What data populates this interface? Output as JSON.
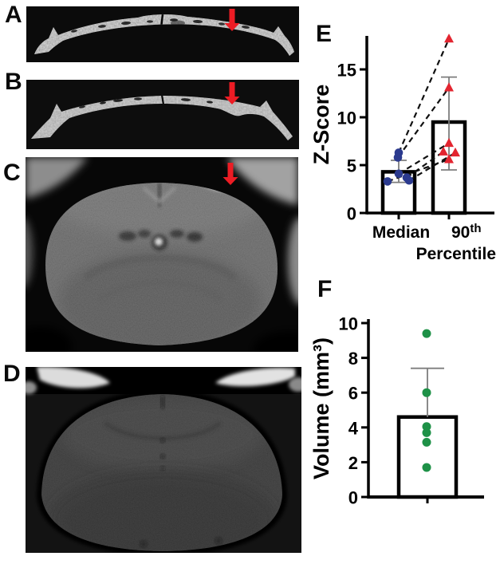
{
  "figure": {
    "background": "#ffffff",
    "arrow_color": "#ec1c24",
    "panels": [
      {
        "id": "A",
        "label": "A",
        "type": "image",
        "content": "skull-ct-cross-section-rough",
        "has_red_arrow": true
      },
      {
        "id": "B",
        "label": "B",
        "type": "image",
        "content": "skull-ct-cross-section-smooth",
        "has_red_arrow": true
      },
      {
        "id": "C",
        "label": "C",
        "type": "image",
        "content": "brain-mri-coronal-with-hyperintense-lesion",
        "has_red_arrow": true
      },
      {
        "id": "D",
        "label": "D",
        "type": "image",
        "content": "brain-mri-coronal-dark",
        "has_red_arrow": false
      },
      {
        "id": "E",
        "label": "E",
        "type": "chart"
      },
      {
        "id": "F",
        "label": "F",
        "type": "chart"
      }
    ]
  },
  "chart_data": [
    {
      "type": "bar",
      "panel": "E",
      "title": "",
      "ylabel": "Z-Score",
      "yticks": [
        0,
        5,
        10,
        15
      ],
      "ylim": [
        0,
        18.5
      ],
      "grid": false,
      "legend": false,
      "categories": [
        "Median",
        "90th Percentile"
      ],
      "x_tick_labels": {
        "cat1": "Median",
        "cat2_base": "90",
        "cat2_sup": "th",
        "cat2_line2": "Percentile"
      },
      "bars": [
        {
          "category": "Median",
          "mean": 4.3,
          "err_low": 3.2,
          "err_high": 5.5
        },
        {
          "category": "90th Percentile",
          "mean": 9.5,
          "err_low": 4.5,
          "err_high": 14.2
        }
      ],
      "paired_points": [
        {
          "median": 6.3,
          "p90": 18.2
        },
        {
          "median": 5.8,
          "p90": 13.1
        },
        {
          "median": 4.1,
          "p90": 7.3
        },
        {
          "median": 3.7,
          "p90": 6.4
        },
        {
          "median": 3.4,
          "p90": 6.3
        },
        {
          "median": 3.3,
          "p90": 5.6
        }
      ],
      "style": {
        "median_marker": "circle",
        "median_color": "#2b3a8e",
        "p90_marker": "triangle",
        "p90_color": "#e32530",
        "bar_fill": "#ffffff",
        "bar_stroke": "#000000",
        "error_color": "#7d7d7d",
        "pair_line": "dashed-black"
      }
    },
    {
      "type": "bar",
      "panel": "F",
      "title": "",
      "ylabel": "Volume (mm³)",
      "yticks": [
        0,
        2,
        4,
        6,
        8,
        10
      ],
      "ylim": [
        0,
        10
      ],
      "grid": false,
      "legend": false,
      "categories": [
        ""
      ],
      "bars": [
        {
          "category": "",
          "mean": 4.6,
          "err_high": 7.4
        }
      ],
      "points": [
        9.4,
        6.0,
        4.05,
        3.7,
        3.15,
        1.7
      ],
      "style": {
        "marker": "circle",
        "marker_color": "#1e9147",
        "bar_fill": "#ffffff",
        "bar_stroke": "#000000",
        "error_color": "#7d7d7d"
      }
    }
  ]
}
